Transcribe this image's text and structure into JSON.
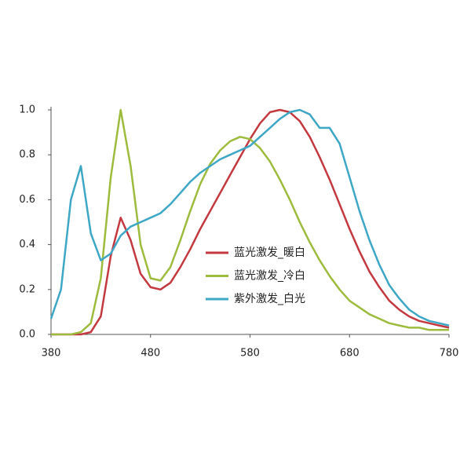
{
  "chart_data": {
    "type": "line",
    "x": [
      380,
      390,
      400,
      410,
      420,
      430,
      440,
      450,
      460,
      470,
      480,
      490,
      500,
      510,
      520,
      530,
      540,
      550,
      560,
      570,
      580,
      590,
      600,
      610,
      620,
      630,
      640,
      650,
      660,
      670,
      680,
      690,
      700,
      710,
      720,
      730,
      740,
      750,
      760,
      770,
      780
    ],
    "series": [
      {
        "name": "蓝光激发_暖白",
        "color": "#c4393f",
        "values": [
          0,
          0,
          0,
          0,
          0.01,
          0.08,
          0.35,
          0.52,
          0.42,
          0.27,
          0.21,
          0.2,
          0.23,
          0.3,
          0.38,
          0.47,
          0.55,
          0.63,
          0.71,
          0.79,
          0.87,
          0.94,
          0.99,
          1.0,
          0.99,
          0.95,
          0.88,
          0.79,
          0.69,
          0.58,
          0.47,
          0.37,
          0.28,
          0.21,
          0.15,
          0.11,
          0.08,
          0.06,
          0.05,
          0.04,
          0.03
        ]
      },
      {
        "name": "蓝光激发_冷白",
        "color": "#9dbb3c",
        "values": [
          0,
          0,
          0,
          0.01,
          0.05,
          0.25,
          0.7,
          1.0,
          0.75,
          0.4,
          0.25,
          0.24,
          0.3,
          0.42,
          0.55,
          0.67,
          0.76,
          0.82,
          0.86,
          0.88,
          0.87,
          0.83,
          0.77,
          0.69,
          0.6,
          0.5,
          0.41,
          0.33,
          0.26,
          0.2,
          0.15,
          0.12,
          0.09,
          0.07,
          0.05,
          0.04,
          0.03,
          0.03,
          0.02,
          0.02,
          0.02
        ]
      },
      {
        "name": "紫外激发_白光",
        "color": "#3ea7c6",
        "values": [
          0.07,
          0.2,
          0.6,
          0.75,
          0.45,
          0.33,
          0.36,
          0.44,
          0.48,
          0.5,
          0.52,
          0.54,
          0.58,
          0.63,
          0.68,
          0.72,
          0.75,
          0.78,
          0.8,
          0.82,
          0.84,
          0.88,
          0.92,
          0.96,
          0.99,
          1.0,
          0.98,
          0.92,
          0.92,
          0.85,
          0.7,
          0.55,
          0.42,
          0.31,
          0.22,
          0.16,
          0.11,
          0.08,
          0.06,
          0.05,
          0.04
        ]
      }
    ],
    "xlim": [
      380,
      780
    ],
    "xticks": [
      380,
      480,
      580,
      680,
      780
    ],
    "ylim": [
      0,
      1
    ],
    "yticks": [
      {
        "value": 0,
        "label": "0.0"
      },
      0.2,
      0.4,
      0.6,
      0.8,
      {
        "value": 1,
        "label": "1.0"
      }
    ]
  }
}
